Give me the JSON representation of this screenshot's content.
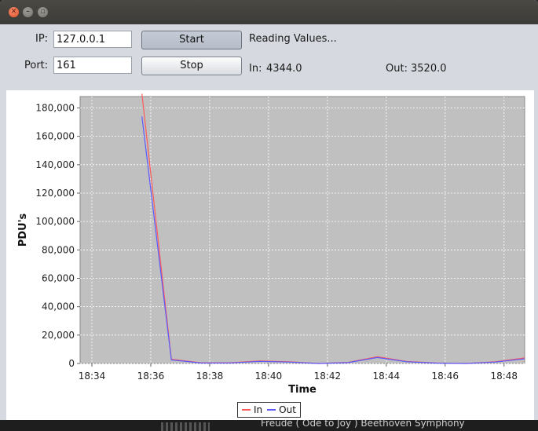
{
  "background": {
    "text": "Freude ( Ode to Joy ) Beethoven Symphony"
  },
  "form": {
    "ip_label": "IP:",
    "ip_value": "127.0.0.1",
    "port_label": "Port:",
    "port_value": "161",
    "start_label": "Start",
    "stop_label": "Stop",
    "status": "Reading Values...",
    "in_label": "In:",
    "in_value": "4344.0",
    "out_label": "Out:",
    "out_value": "3520.0"
  },
  "colors": {
    "in_series": "#ff5a5a",
    "out_series": "#5a5aff",
    "plot_background": "#c0c0c0",
    "gridline": "#ffffff"
  },
  "chart_data": {
    "type": "line",
    "title": "",
    "xlabel": "Time",
    "ylabel": "PDU's",
    "xlim": [
      "18:33.6",
      "18:48.7"
    ],
    "ylim": [
      0,
      188000
    ],
    "x_ticks": [
      "18:34",
      "18:36",
      "18:38",
      "18:40",
      "18:42",
      "18:44",
      "18:46",
      "18:48"
    ],
    "y_ticks": [
      "0",
      "20,000",
      "40,000",
      "60,000",
      "80,000",
      "100,000",
      "120,000",
      "140,000",
      "160,000",
      "180,000"
    ],
    "y_tick_values": [
      0,
      20000,
      40000,
      60000,
      80000,
      100000,
      120000,
      140000,
      160000,
      180000
    ],
    "grid": true,
    "legend_position": "bottom",
    "series": [
      {
        "name": "In",
        "x": [
          "18:35.7",
          "18:36.7",
          "18:37.7",
          "18:38.7",
          "18:39.7",
          "18:40.7",
          "18:41.7",
          "18:42.7",
          "18:43.7",
          "18:44.7",
          "18:45.7",
          "18:46.7",
          "18:47.7",
          "18:48.7"
        ],
        "values": [
          190000,
          3000,
          500,
          500,
          1800,
          1200,
          0,
          800,
          4800,
          1400,
          400,
          0,
          1200,
          4000
        ]
      },
      {
        "name": "Out",
        "x": [
          "18:35.7",
          "18:36.7",
          "18:37.7",
          "18:38.7",
          "18:39.7",
          "18:40.7",
          "18:41.7",
          "18:42.7",
          "18:43.7",
          "18:44.7",
          "18:45.7",
          "18:46.7",
          "18:47.7",
          "18:48.7"
        ],
        "values": [
          174000,
          2500,
          400,
          400,
          1500,
          1000,
          0,
          600,
          4200,
          1200,
          300,
          0,
          1000,
          3300
        ]
      }
    ]
  }
}
